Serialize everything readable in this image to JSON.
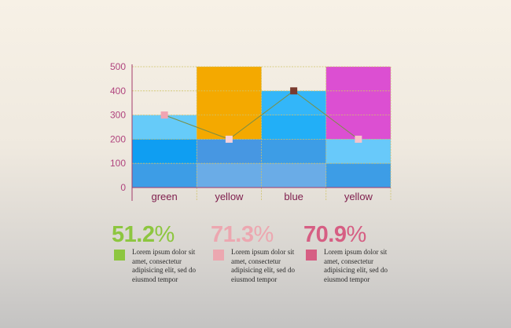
{
  "chart_data": {
    "type": "bar",
    "categories": [
      "green",
      "yellow",
      "blue",
      "yellow"
    ],
    "ylim": [
      0,
      500
    ],
    "yticks": [
      0,
      100,
      200,
      300,
      400,
      500
    ],
    "bars": [
      {
        "category": "green",
        "segments": [
          {
            "from": 0,
            "to": 100,
            "color": "#3d9de6"
          },
          {
            "from": 100,
            "to": 200,
            "color": "#0f9ef2"
          },
          {
            "from": 200,
            "to": 300,
            "color": "#66cbf9"
          }
        ]
      },
      {
        "category": "yellow",
        "segments": [
          {
            "from": 0,
            "to": 100,
            "color": "#6aace7"
          },
          {
            "from": 100,
            "to": 200,
            "color": "#4797e2"
          },
          {
            "from": 200,
            "to": 500,
            "color": "#f4a900"
          }
        ]
      },
      {
        "category": "blue",
        "segments": [
          {
            "from": 0,
            "to": 100,
            "color": "#6aace7"
          },
          {
            "from": 100,
            "to": 200,
            "color": "#3d9de6"
          },
          {
            "from": 200,
            "to": 300,
            "color": "#22aff7"
          },
          {
            "from": 300,
            "to": 400,
            "color": "#33b6f9"
          }
        ]
      },
      {
        "category": "yellow",
        "segments": [
          {
            "from": 0,
            "to": 100,
            "color": "#3d9de6"
          },
          {
            "from": 100,
            "to": 200,
            "color": "#68c9fa"
          },
          {
            "from": 200,
            "to": 500,
            "color": "#dc4fd2"
          }
        ]
      }
    ],
    "line": {
      "values": [
        300,
        200,
        400,
        200
      ],
      "color": "#7a8f46",
      "marker_colors": [
        "#f0a4b2",
        "#f7d2da",
        "#7a3b2e",
        "#f7c3cb"
      ]
    },
    "axis_color": "#a43a6a",
    "tick_label_color": "#b0447e",
    "category_label_color": "#7e1d4c",
    "grid": true,
    "grid_color": "#cfc46a"
  },
  "stats": [
    {
      "number": "51.2",
      "sign": "%",
      "color": "#8dc63f",
      "text": "Lorem ipsum dolor sit amet, consectetur adipisicing elit, sed do eiusmod tempor"
    },
    {
      "number": "71.3",
      "sign": "%",
      "color": "#eca7b0",
      "text": "Lorem ipsum dolor sit amet, consectetur adipisicing elit, sed do eiusmod tempor"
    },
    {
      "number": "70.9",
      "sign": "%",
      "color": "#d65e83",
      "text": "Lorem ipsum dolor sit amet, consectetur adipisicing elit, sed do eiusmod tempor"
    }
  ]
}
